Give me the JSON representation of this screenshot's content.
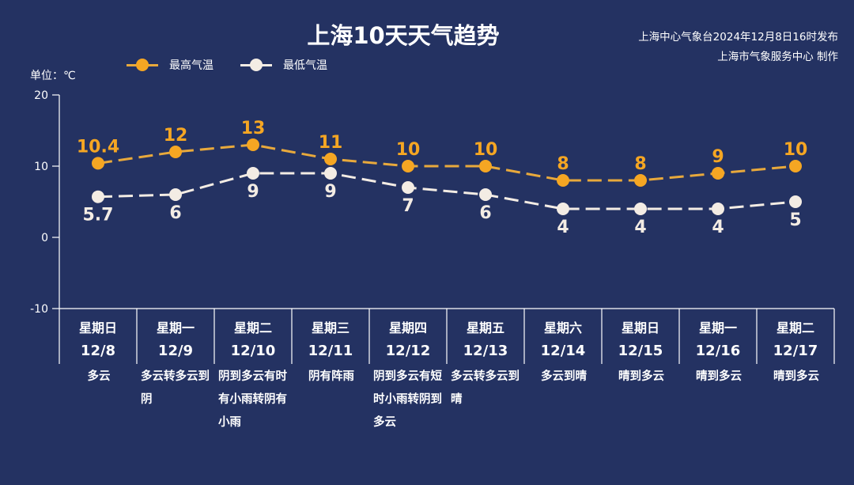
{
  "title": "上海10天天气趋势",
  "publisher": {
    "line1": "上海中心气象台2024年12月8日16时发布",
    "line2": "上海市气象服务中心 制作"
  },
  "legend": {
    "high_label": "最高气温",
    "low_label": "最低气温"
  },
  "unit_label": "单位：℃",
  "colors": {
    "background": "#243262",
    "high": "#f5a623",
    "high_line": "#e8a93c",
    "low": "#f3ece4",
    "axis": "#ffffff"
  },
  "days": [
    {
      "weekday": "星期日",
      "date": "12/8",
      "weather": "多云"
    },
    {
      "weekday": "星期一",
      "date": "12/9",
      "weather": "多云转多云到阴"
    },
    {
      "weekday": "星期二",
      "date": "12/10",
      "weather": "阴到多云有时有小雨转阴有小雨"
    },
    {
      "weekday": "星期三",
      "date": "12/11",
      "weather": "阴有阵雨"
    },
    {
      "weekday": "星期四",
      "date": "12/12",
      "weather": "阴到多云有短时小雨转阴到多云"
    },
    {
      "weekday": "星期五",
      "date": "12/13",
      "weather": "多云转多云到晴"
    },
    {
      "weekday": "星期六",
      "date": "12/14",
      "weather": "多云到晴"
    },
    {
      "weekday": "星期日",
      "date": "12/15",
      "weather": "晴到多云"
    },
    {
      "weekday": "星期一",
      "date": "12/16",
      "weather": "晴到多云"
    },
    {
      "weekday": "星期二",
      "date": "12/17",
      "weather": "晴到多云"
    }
  ],
  "chart_data": {
    "type": "line",
    "title": "上海10天天气趋势",
    "xlabel": "",
    "ylabel": "单位：℃",
    "ylim": [
      -10,
      20
    ],
    "yticks": [
      20,
      10,
      0,
      -10
    ],
    "grid": false,
    "legend_position": "top-left",
    "categories": [
      "12/8",
      "12/9",
      "12/10",
      "12/11",
      "12/12",
      "12/13",
      "12/14",
      "12/15",
      "12/16",
      "12/17"
    ],
    "series": [
      {
        "name": "最高气温",
        "color": "#f5a623",
        "style": "dashed",
        "labels": [
          "10.4",
          "12",
          "13",
          "11",
          "10",
          "10",
          "8",
          "8",
          "9",
          "10"
        ],
        "values": [
          10.4,
          12,
          13,
          11,
          10,
          10,
          8,
          8,
          9,
          10
        ]
      },
      {
        "name": "最低气温",
        "color": "#f3ece4",
        "style": "dashed",
        "labels": [
          "5.7",
          "6",
          "9",
          "9",
          "7",
          "6",
          "4",
          "4",
          "4",
          "5"
        ],
        "values": [
          5.7,
          6,
          9,
          9,
          7,
          6,
          4,
          4,
          4,
          5
        ]
      }
    ]
  }
}
